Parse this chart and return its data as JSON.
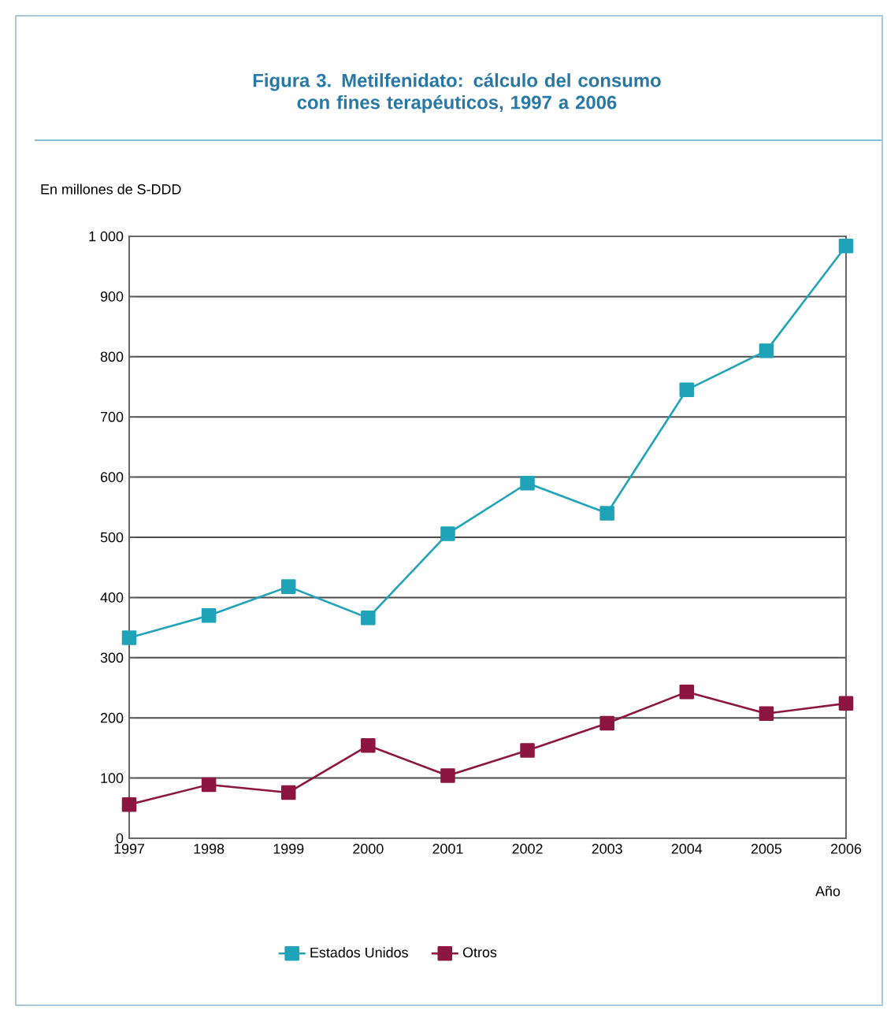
{
  "chart_data": {
    "type": "line",
    "title": "Figura 3.   Metilfenidato: cálculo del consumo con fines terapéuticos, 1997 a 2006",
    "ylabel": "En millones de S-DDD",
    "xlabel": "Año",
    "categories": [
      "1997",
      "1998",
      "1999",
      "2000",
      "2001",
      "2002",
      "2003",
      "2004",
      "2005",
      "2006"
    ],
    "series": [
      {
        "name": "Estados Unidos",
        "color": "#1fa3b8",
        "values": [
          333,
          370,
          418,
          366,
          506,
          590,
          540,
          745,
          810,
          984
        ]
      },
      {
        "name": "Otros",
        "color": "#8c1640",
        "values": [
          56,
          89,
          76,
          154,
          104,
          146,
          191,
          243,
          207,
          224
        ]
      }
    ],
    "ylim": [
      0,
      1000
    ],
    "yticks": [
      0,
      100,
      200,
      300,
      400,
      500,
      600,
      700,
      800,
      900,
      {
        "value": 1000,
        "label": "1 000"
      }
    ],
    "grid": "y",
    "legend": "bottom",
    "marker": "square",
    "line_style": "solid"
  }
}
